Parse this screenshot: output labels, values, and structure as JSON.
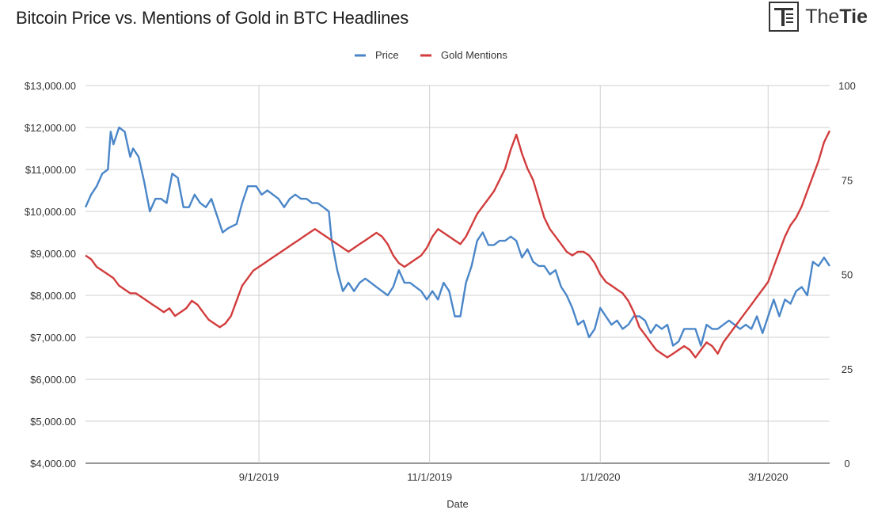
{
  "header": {
    "title": "Bitcoin Price vs. Mentions of Gold in BTC Headlines",
    "logo_light": "The",
    "logo_bold": "Tie"
  },
  "chart_data": {
    "type": "line",
    "title": "Bitcoin Price vs. Mentions of Gold in BTC Headlines",
    "xlabel": "Date",
    "ylabel": "",
    "ylabel_right": "",
    "x_range": [
      "2019-07-01",
      "2020-03-23"
    ],
    "x_ticks": [
      {
        "date": "2019-09-01",
        "label": "9/1/2019"
      },
      {
        "date": "2019-11-01",
        "label": "11/1/2019"
      },
      {
        "date": "2020-01-01",
        "label": "1/1/2020"
      },
      {
        "date": "2020-03-01",
        "label": "3/1/2020"
      }
    ],
    "ylim_left": [
      4000,
      13000
    ],
    "yticks_left": [
      "$4,000.00",
      "$5,000.00",
      "$6,000.00",
      "$7,000.00",
      "$8,000.00",
      "$9,000.00",
      "$10,000.00",
      "$11,000.00",
      "$12,000.00",
      "$13,000.00"
    ],
    "ylim_right": [
      0,
      100
    ],
    "yticks_right": [
      "0",
      "25",
      "50",
      "75",
      "100"
    ],
    "grid": true,
    "legend_position": "top-center",
    "series": [
      {
        "name": "Price",
        "axis": "left",
        "color": "#4a86c8",
        "points": [
          [
            "2019-07-01",
            10100
          ],
          [
            "2019-07-03",
            10400
          ],
          [
            "2019-07-05",
            10600
          ],
          [
            "2019-07-07",
            10900
          ],
          [
            "2019-07-09",
            11000
          ],
          [
            "2019-07-10",
            11900
          ],
          [
            "2019-07-11",
            11600
          ],
          [
            "2019-07-13",
            12000
          ],
          [
            "2019-07-15",
            11900
          ],
          [
            "2019-07-16",
            11600
          ],
          [
            "2019-07-17",
            11300
          ],
          [
            "2019-07-18",
            11500
          ],
          [
            "2019-07-20",
            11300
          ],
          [
            "2019-07-22",
            10700
          ],
          [
            "2019-07-24",
            10000
          ],
          [
            "2019-07-26",
            10300
          ],
          [
            "2019-07-28",
            10300
          ],
          [
            "2019-07-30",
            10200
          ],
          [
            "2019-08-01",
            10900
          ],
          [
            "2019-08-03",
            10800
          ],
          [
            "2019-08-05",
            10100
          ],
          [
            "2019-08-07",
            10100
          ],
          [
            "2019-08-09",
            10400
          ],
          [
            "2019-08-11",
            10200
          ],
          [
            "2019-08-13",
            10100
          ],
          [
            "2019-08-15",
            10300
          ],
          [
            "2019-08-17",
            9900
          ],
          [
            "2019-08-19",
            9500
          ],
          [
            "2019-08-21",
            9600
          ],
          [
            "2019-08-24",
            9700
          ],
          [
            "2019-08-26",
            10200
          ],
          [
            "2019-08-28",
            10600
          ],
          [
            "2019-08-31",
            10600
          ],
          [
            "2019-09-02",
            10400
          ],
          [
            "2019-09-04",
            10500
          ],
          [
            "2019-09-06",
            10400
          ],
          [
            "2019-09-08",
            10300
          ],
          [
            "2019-09-10",
            10100
          ],
          [
            "2019-09-12",
            10300
          ],
          [
            "2019-09-14",
            10400
          ],
          [
            "2019-09-16",
            10300
          ],
          [
            "2019-09-18",
            10300
          ],
          [
            "2019-09-20",
            10200
          ],
          [
            "2019-09-22",
            10200
          ],
          [
            "2019-09-24",
            10100
          ],
          [
            "2019-09-26",
            10000
          ],
          [
            "2019-09-27",
            9300
          ],
          [
            "2019-09-29",
            8600
          ],
          [
            "2019-10-01",
            8100
          ],
          [
            "2019-10-03",
            8300
          ],
          [
            "2019-10-05",
            8100
          ],
          [
            "2019-10-07",
            8300
          ],
          [
            "2019-10-09",
            8400
          ],
          [
            "2019-10-11",
            8300
          ],
          [
            "2019-10-13",
            8200
          ],
          [
            "2019-10-15",
            8100
          ],
          [
            "2019-10-17",
            8000
          ],
          [
            "2019-10-19",
            8200
          ],
          [
            "2019-10-21",
            8600
          ],
          [
            "2019-10-23",
            8300
          ],
          [
            "2019-10-25",
            8300
          ],
          [
            "2019-10-27",
            8200
          ],
          [
            "2019-10-29",
            8100
          ],
          [
            "2019-10-31",
            7900
          ],
          [
            "2019-11-02",
            8100
          ],
          [
            "2019-11-04",
            7900
          ],
          [
            "2019-11-06",
            8300
          ],
          [
            "2019-11-08",
            8100
          ],
          [
            "2019-11-10",
            7500
          ],
          [
            "2019-11-12",
            7500
          ],
          [
            "2019-11-14",
            8300
          ],
          [
            "2019-11-16",
            8700
          ],
          [
            "2019-11-18",
            9300
          ],
          [
            "2019-11-20",
            9500
          ],
          [
            "2019-11-22",
            9200
          ],
          [
            "2019-11-24",
            9200
          ],
          [
            "2019-11-26",
            9300
          ],
          [
            "2019-11-28",
            9300
          ],
          [
            "2019-11-30",
            9400
          ],
          [
            "2019-12-02",
            9300
          ],
          [
            "2019-12-04",
            8900
          ],
          [
            "2019-12-06",
            9100
          ],
          [
            "2019-12-08",
            8800
          ],
          [
            "2019-12-10",
            8700
          ],
          [
            "2019-12-12",
            8700
          ],
          [
            "2019-12-14",
            8500
          ],
          [
            "2019-12-16",
            8600
          ],
          [
            "2019-12-18",
            8200
          ],
          [
            "2019-12-20",
            8000
          ],
          [
            "2019-12-22",
            7700
          ],
          [
            "2019-12-24",
            7300
          ],
          [
            "2019-12-26",
            7400
          ],
          [
            "2019-12-28",
            7000
          ],
          [
            "2019-12-30",
            7200
          ],
          [
            "2020-01-01",
            7700
          ],
          [
            "2020-01-03",
            7500
          ],
          [
            "2020-01-05",
            7300
          ],
          [
            "2020-01-07",
            7400
          ],
          [
            "2020-01-09",
            7200
          ],
          [
            "2020-01-11",
            7300
          ],
          [
            "2020-01-13",
            7500
          ],
          [
            "2020-01-15",
            7500
          ],
          [
            "2020-01-17",
            7400
          ],
          [
            "2020-01-19",
            7100
          ],
          [
            "2020-01-21",
            7300
          ],
          [
            "2020-01-23",
            7200
          ],
          [
            "2020-01-25",
            7300
          ],
          [
            "2020-01-27",
            6800
          ],
          [
            "2020-01-29",
            6900
          ],
          [
            "2020-01-31",
            7200
          ],
          [
            "2020-02-02",
            7200
          ],
          [
            "2020-02-04",
            7200
          ],
          [
            "2020-02-06",
            6800
          ],
          [
            "2020-02-08",
            7300
          ],
          [
            "2020-02-10",
            7200
          ],
          [
            "2020-02-12",
            7200
          ],
          [
            "2020-02-14",
            7300
          ],
          [
            "2020-02-16",
            7400
          ],
          [
            "2020-02-18",
            7300
          ],
          [
            "2020-02-20",
            7200
          ],
          [
            "2020-02-22",
            7300
          ],
          [
            "2020-02-24",
            7200
          ],
          [
            "2020-02-26",
            7500
          ],
          [
            "2020-02-28",
            7100
          ],
          [
            "2020-03-01",
            7500
          ],
          [
            "2020-03-03",
            7900
          ],
          [
            "2020-03-05",
            7500
          ],
          [
            "2020-03-07",
            7900
          ],
          [
            "2020-03-09",
            7800
          ],
          [
            "2020-03-11",
            8100
          ],
          [
            "2020-03-13",
            8200
          ],
          [
            "2020-03-15",
            8000
          ],
          [
            "2020-03-17",
            8800
          ],
          [
            "2020-03-19",
            8700
          ],
          [
            "2020-03-21",
            8900
          ],
          [
            "2020-03-23",
            8700
          ]
        ]
      },
      {
        "name": "Gold Mentions",
        "axis": "right",
        "color": "#d23c3c",
        "points": [
          [
            "2019-07-01",
            55
          ],
          [
            "2019-07-03",
            54
          ],
          [
            "2019-07-05",
            52
          ],
          [
            "2019-07-07",
            51
          ],
          [
            "2019-07-09",
            50
          ],
          [
            "2019-07-11",
            49
          ],
          [
            "2019-07-13",
            47
          ],
          [
            "2019-07-15",
            46
          ],
          [
            "2019-07-17",
            45
          ],
          [
            "2019-07-19",
            45
          ],
          [
            "2019-07-21",
            44
          ],
          [
            "2019-07-23",
            43
          ],
          [
            "2019-07-25",
            42
          ],
          [
            "2019-07-27",
            41
          ],
          [
            "2019-07-29",
            40
          ],
          [
            "2019-07-31",
            41
          ],
          [
            "2019-08-02",
            39
          ],
          [
            "2019-08-04",
            40
          ],
          [
            "2019-08-06",
            41
          ],
          [
            "2019-08-08",
            43
          ],
          [
            "2019-08-10",
            42
          ],
          [
            "2019-08-12",
            40
          ],
          [
            "2019-08-14",
            38
          ],
          [
            "2019-08-16",
            37
          ],
          [
            "2019-08-18",
            36
          ],
          [
            "2019-08-20",
            37
          ],
          [
            "2019-08-22",
            39
          ],
          [
            "2019-08-24",
            43
          ],
          [
            "2019-08-26",
            47
          ],
          [
            "2019-08-28",
            49
          ],
          [
            "2019-08-30",
            51
          ],
          [
            "2019-09-01",
            52
          ],
          [
            "2019-09-03",
            53
          ],
          [
            "2019-09-05",
            54
          ],
          [
            "2019-09-07",
            55
          ],
          [
            "2019-09-09",
            56
          ],
          [
            "2019-09-11",
            57
          ],
          [
            "2019-09-13",
            58
          ],
          [
            "2019-09-15",
            59
          ],
          [
            "2019-09-17",
            60
          ],
          [
            "2019-09-19",
            61
          ],
          [
            "2019-09-21",
            62
          ],
          [
            "2019-09-23",
            61
          ],
          [
            "2019-09-25",
            60
          ],
          [
            "2019-09-27",
            59
          ],
          [
            "2019-09-29",
            58
          ],
          [
            "2019-10-01",
            57
          ],
          [
            "2019-10-03",
            56
          ],
          [
            "2019-10-05",
            57
          ],
          [
            "2019-10-07",
            58
          ],
          [
            "2019-10-09",
            59
          ],
          [
            "2019-10-11",
            60
          ],
          [
            "2019-10-13",
            61
          ],
          [
            "2019-10-15",
            60
          ],
          [
            "2019-10-17",
            58
          ],
          [
            "2019-10-19",
            55
          ],
          [
            "2019-10-21",
            53
          ],
          [
            "2019-10-23",
            52
          ],
          [
            "2019-10-25",
            53
          ],
          [
            "2019-10-27",
            54
          ],
          [
            "2019-10-29",
            55
          ],
          [
            "2019-10-31",
            57
          ],
          [
            "2019-11-02",
            60
          ],
          [
            "2019-11-04",
            62
          ],
          [
            "2019-11-06",
            61
          ],
          [
            "2019-11-08",
            60
          ],
          [
            "2019-11-10",
            59
          ],
          [
            "2019-11-12",
            58
          ],
          [
            "2019-11-14",
            60
          ],
          [
            "2019-11-16",
            63
          ],
          [
            "2019-11-18",
            66
          ],
          [
            "2019-11-20",
            68
          ],
          [
            "2019-11-22",
            70
          ],
          [
            "2019-11-24",
            72
          ],
          [
            "2019-11-26",
            75
          ],
          [
            "2019-11-28",
            78
          ],
          [
            "2019-11-30",
            83
          ],
          [
            "2019-12-02",
            87
          ],
          [
            "2019-12-04",
            82
          ],
          [
            "2019-12-06",
            78
          ],
          [
            "2019-12-08",
            75
          ],
          [
            "2019-12-10",
            70
          ],
          [
            "2019-12-12",
            65
          ],
          [
            "2019-12-14",
            62
          ],
          [
            "2019-12-16",
            60
          ],
          [
            "2019-12-18",
            58
          ],
          [
            "2019-12-20",
            56
          ],
          [
            "2019-12-22",
            55
          ],
          [
            "2019-12-24",
            56
          ],
          [
            "2019-12-26",
            56
          ],
          [
            "2019-12-28",
            55
          ],
          [
            "2019-12-30",
            53
          ],
          [
            "2020-01-01",
            50
          ],
          [
            "2020-01-03",
            48
          ],
          [
            "2020-01-05",
            47
          ],
          [
            "2020-01-07",
            46
          ],
          [
            "2020-01-09",
            45
          ],
          [
            "2020-01-11",
            43
          ],
          [
            "2020-01-13",
            40
          ],
          [
            "2020-01-15",
            36
          ],
          [
            "2020-01-17",
            34
          ],
          [
            "2020-01-19",
            32
          ],
          [
            "2020-01-21",
            30
          ],
          [
            "2020-01-23",
            29
          ],
          [
            "2020-01-25",
            28
          ],
          [
            "2020-01-27",
            29
          ],
          [
            "2020-01-29",
            30
          ],
          [
            "2020-01-31",
            31
          ],
          [
            "2020-02-02",
            30
          ],
          [
            "2020-02-04",
            28
          ],
          [
            "2020-02-06",
            30
          ],
          [
            "2020-02-08",
            32
          ],
          [
            "2020-02-10",
            31
          ],
          [
            "2020-02-12",
            29
          ],
          [
            "2020-02-14",
            32
          ],
          [
            "2020-02-16",
            34
          ],
          [
            "2020-02-18",
            36
          ],
          [
            "2020-02-20",
            38
          ],
          [
            "2020-02-22",
            40
          ],
          [
            "2020-02-24",
            42
          ],
          [
            "2020-02-26",
            44
          ],
          [
            "2020-02-28",
            46
          ],
          [
            "2020-03-01",
            48
          ],
          [
            "2020-03-03",
            52
          ],
          [
            "2020-03-05",
            56
          ],
          [
            "2020-03-07",
            60
          ],
          [
            "2020-03-09",
            63
          ],
          [
            "2020-03-11",
            65
          ],
          [
            "2020-03-13",
            68
          ],
          [
            "2020-03-15",
            72
          ],
          [
            "2020-03-17",
            76
          ],
          [
            "2020-03-19",
            80
          ],
          [
            "2020-03-21",
            85
          ],
          [
            "2020-03-23",
            88
          ]
        ]
      }
    ]
  }
}
